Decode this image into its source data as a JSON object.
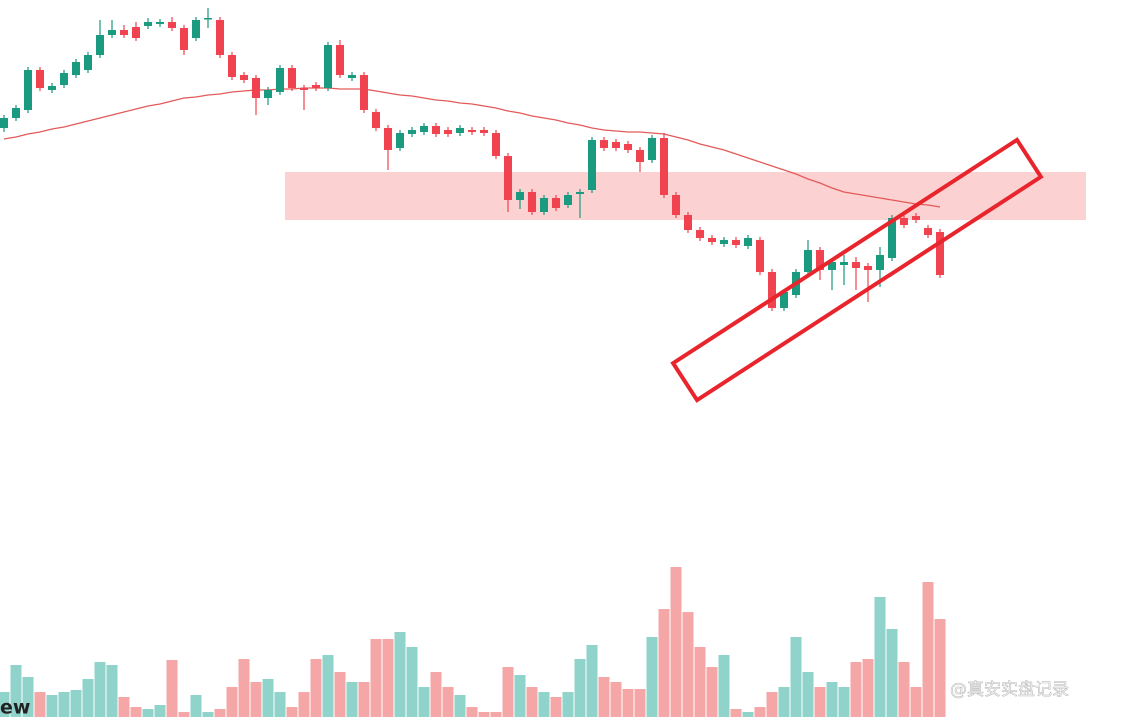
{
  "chart_data": {
    "type": "candlestick",
    "open": [
      589,
      599,
      607,
      647,
      627,
      632,
      642,
      647,
      662,
      682,
      687,
      690,
      691,
      693,
      695,
      689,
      679,
      698,
      697,
      662,
      642,
      639,
      619,
      625,
      649,
      629,
      632,
      629,
      672,
      639,
      642,
      605,
      589,
      569,
      583,
      585,
      591,
      587,
      584,
      587,
      587,
      584,
      561,
      517,
      525,
      505,
      519,
      512,
      523,
      527,
      577,
      575,
      573,
      567,
      557,
      579,
      522,
      502,
      487,
      479,
      473,
      477,
      471,
      477,
      445,
      409,
      422,
      445,
      467,
      447,
      452,
      455,
      451,
      447,
      459,
      499,
      501,
      489,
      485
    ],
    "high": [
      602,
      612,
      650,
      650,
      634,
      647,
      658,
      665,
      697,
      697,
      692,
      695,
      699,
      698,
      700,
      692,
      700,
      709,
      700,
      665,
      645,
      642,
      630,
      652,
      652,
      632,
      635,
      675,
      677,
      645,
      645,
      608,
      592,
      587,
      590,
      594,
      594,
      590,
      592,
      590,
      590,
      587,
      564,
      528,
      528,
      522,
      522,
      525,
      528,
      580,
      580,
      578,
      576,
      570,
      582,
      584,
      525,
      505,
      490,
      482,
      480,
      480,
      482,
      480,
      448,
      428,
      448,
      477,
      470,
      458,
      462,
      460,
      454,
      470,
      502,
      502,
      504,
      492,
      488
    ],
    "low": [
      585,
      596,
      604,
      626,
      624,
      629,
      639,
      644,
      659,
      679,
      679,
      676,
      688,
      690,
      686,
      662,
      676,
      689,
      659,
      637,
      634,
      602,
      612,
      622,
      626,
      607,
      626,
      626,
      639,
      636,
      604,
      586,
      547,
      566,
      580,
      582,
      580,
      580,
      581,
      582,
      581,
      558,
      505,
      508,
      502,
      502,
      506,
      509,
      499,
      524,
      566,
      566,
      564,
      545,
      554,
      519,
      499,
      484,
      476,
      472,
      470,
      469,
      468,
      442,
      406,
      406,
      419,
      442,
      437,
      427,
      432,
      427,
      415,
      430,
      456,
      489,
      494,
      479,
      439
    ],
    "close": [
      599,
      609,
      647,
      629,
      631,
      644,
      655,
      662,
      682,
      687,
      682,
      679,
      695,
      695,
      689,
      667,
      697,
      699,
      662,
      640,
      637,
      619,
      627,
      649,
      629,
      627,
      629,
      672,
      642,
      642,
      607,
      589,
      567,
      584,
      587,
      591,
      583,
      583,
      589,
      585,
      584,
      561,
      517,
      525,
      505,
      519,
      509,
      522,
      525,
      577,
      569,
      569,
      567,
      555,
      579,
      522,
      502,
      487,
      479,
      475,
      477,
      472,
      479,
      445,
      409,
      425,
      445,
      467,
      447,
      455,
      455,
      449,
      447,
      462,
      499,
      492,
      497,
      482,
      442
    ],
    "ylim": [
      300,
      717
    ],
    "colors": {
      "up": "#1a9a7e",
      "down": "#f0424f"
    },
    "ma": {
      "color": "#e35a5a",
      "values": [
        578,
        580,
        583,
        585,
        588,
        590,
        593,
        596,
        599,
        602,
        605,
        608,
        611,
        613,
        616,
        619,
        620,
        622,
        623,
        625,
        626,
        627,
        627,
        628,
        628,
        629,
        629,
        629,
        628,
        628,
        628,
        626,
        624,
        622,
        621,
        619,
        617,
        616,
        614,
        613,
        611,
        609,
        606,
        604,
        601,
        599,
        597,
        594,
        592,
        589,
        587,
        586,
        585,
        585,
        584,
        583,
        580,
        577,
        573,
        570,
        567,
        563,
        559,
        555,
        551,
        547,
        543,
        538,
        534,
        529,
        525,
        523,
        521,
        519,
        517,
        515,
        513,
        512,
        510
      ]
    },
    "zone": {
      "low": 497,
      "high": 545,
      "color": "#fbc9c9"
    },
    "volume": {
      "ylim": [
        0,
        160
      ],
      "up_color": "#8fd3cb",
      "down_color": "#f5a7a7",
      "values": [
        25,
        52,
        40,
        25,
        22,
        25,
        27,
        38,
        55,
        52,
        20,
        10,
        8,
        12,
        57,
        5,
        22,
        5,
        8,
        30,
        58,
        35,
        38,
        25,
        10,
        25,
        58,
        62,
        45,
        35,
        35,
        78,
        78,
        85,
        70,
        30,
        45,
        30,
        22,
        10,
        5,
        5,
        50,
        42,
        30,
        25,
        20,
        25,
        58,
        72,
        40,
        35,
        28,
        28,
        80,
        108,
        150,
        105,
        70,
        50,
        62,
        8,
        5,
        10,
        25,
        30,
        80,
        45,
        30,
        35,
        30,
        55,
        58,
        120,
        88,
        55,
        30,
        135,
        98
      ]
    }
  },
  "brand": "ew",
  "watermark": "@真安实盘记录"
}
